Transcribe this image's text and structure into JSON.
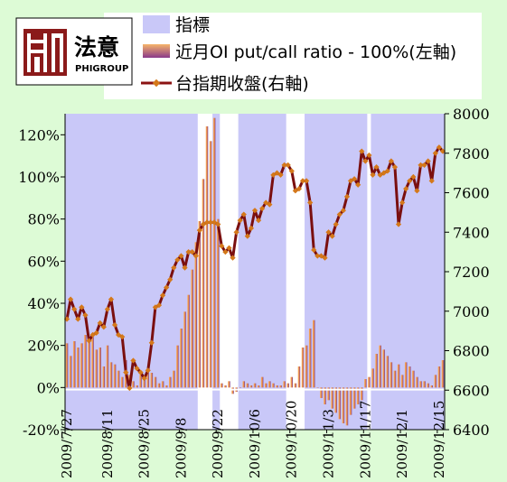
{
  "logo": {
    "name_cn": "法意",
    "name_en": "PHIGROUP",
    "glyph": "logo-mark-icon"
  },
  "legend": [
    {
      "label": "指標",
      "style": "area",
      "color": "#c9c8f8"
    },
    {
      "label": "近月OI put/call ratio - 100%(左軸)",
      "style": "bar",
      "color": "#f2a055"
    },
    {
      "label": "台指期收盤(右軸)",
      "style": "line-marker",
      "color": "#8b1212"
    }
  ],
  "chart_data": {
    "type": "bar",
    "title": "",
    "left_axis": {
      "ylim": [
        -20,
        130
      ],
      "ticks": [
        -20,
        0,
        20,
        40,
        60,
        80,
        100,
        120
      ],
      "unit": "%"
    },
    "right_axis": {
      "ylim": [
        6400,
        8000
      ],
      "ticks": [
        6400,
        6600,
        6800,
        7000,
        7200,
        7400,
        7600,
        7800,
        8000
      ]
    },
    "x_tick_labels": [
      "2009/7/27",
      "2009/8/11",
      "2009/8/25",
      "2009/9/8",
      "2009/9/22",
      "2009/10/6",
      "2009/10/20",
      "2009/11/3",
      "2009/11/17",
      "2009/12/1",
      "2009/12/15"
    ],
    "x_tick_index": [
      0,
      11,
      21,
      31,
      41,
      51,
      61,
      71,
      81,
      91,
      101
    ],
    "n_days": 103,
    "indicator_regions": [
      [
        0,
        36
      ],
      [
        40,
        42
      ],
      [
        47,
        60
      ],
      [
        65,
        82
      ],
      [
        83,
        103
      ]
    ],
    "series": [
      {
        "name": "近月OI put/call ratio - 100%(左軸)",
        "axis": "left",
        "values": [
          21,
          15,
          22,
          19,
          21,
          25,
          23,
          24,
          18,
          19,
          10,
          20,
          12,
          11,
          8,
          5,
          13,
          6,
          3,
          1,
          6,
          4,
          8,
          7,
          5,
          2,
          3,
          1,
          5,
          8,
          20,
          28,
          36,
          44,
          56,
          69,
          79,
          99,
          124,
          117,
          128,
          80,
          2,
          1,
          3,
          -3,
          -2,
          0,
          3,
          2,
          1,
          2,
          1,
          5,
          2,
          3,
          2,
          1,
          1,
          3,
          2,
          5,
          2,
          10,
          19,
          20,
          28,
          32,
          0,
          -5,
          -8,
          -6,
          -10,
          -12,
          -15,
          -17,
          -18,
          -13,
          -10,
          -8,
          -6,
          4,
          5,
          9,
          16,
          20,
          18,
          15,
          12,
          8,
          11,
          6,
          12,
          10,
          8,
          5,
          3,
          3,
          2,
          1,
          6,
          10,
          13
        ]
      },
      {
        "name": "台指期收盤(右軸)",
        "axis": "right",
        "values": [
          6960,
          7060,
          7010,
          6960,
          7020,
          6980,
          6850,
          6880,
          6890,
          6940,
          6920,
          7010,
          7060,
          6930,
          6880,
          6870,
          6690,
          6610,
          6750,
          6710,
          6690,
          6660,
          6700,
          6840,
          7020,
          7030,
          7080,
          7120,
          7160,
          7220,
          7260,
          7280,
          7220,
          7300,
          7300,
          7280,
          7410,
          7440,
          7450,
          7450,
          7450,
          7440,
          7330,
          7300,
          7320,
          7270,
          7400,
          7460,
          7490,
          7380,
          7420,
          7510,
          7460,
          7520,
          7550,
          7540,
          7690,
          7700,
          7690,
          7740,
          7740,
          7710,
          7610,
          7620,
          7660,
          7660,
          7550,
          7310,
          7280,
          7280,
          7270,
          7400,
          7380,
          7440,
          7490,
          7510,
          7580,
          7660,
          7670,
          7640,
          7810,
          7760,
          7790,
          7690,
          7730,
          7690,
          7700,
          7710,
          7760,
          7730,
          7440,
          7550,
          7620,
          7660,
          7680,
          7610,
          7740,
          7740,
          7760,
          7660,
          7800,
          7830,
          7810
        ]
      }
    ]
  }
}
